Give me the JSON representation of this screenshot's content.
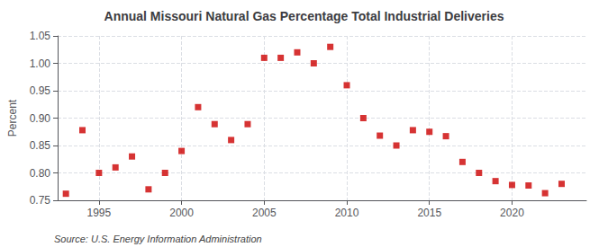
{
  "chart_data": {
    "type": "scatter",
    "title": "Annual Missouri Natural Gas Percentage Total Industrial Deliveries",
    "ylabel": "Percent",
    "annotations": [
      "Source: U.S. Energy Information Administration"
    ],
    "x": [
      1993,
      1994,
      1995,
      1996,
      1997,
      1998,
      1999,
      2000,
      2001,
      2002,
      2003,
      2004,
      2005,
      2006,
      2007,
      2008,
      2009,
      2010,
      2011,
      2012,
      2013,
      2014,
      2015,
      2016,
      2017,
      2018,
      2019,
      2020,
      2021,
      2022,
      2023
    ],
    "values": [
      0.762,
      0.878,
      0.8,
      0.81,
      0.83,
      0.77,
      0.8,
      0.84,
      0.92,
      0.889,
      0.86,
      0.889,
      1.01,
      1.01,
      1.02,
      1.0,
      1.03,
      0.96,
      0.9,
      0.868,
      0.85,
      0.878,
      0.875,
      0.867,
      0.82,
      0.8,
      0.785,
      0.778,
      0.777,
      0.763,
      0.78
    ],
    "color": "#cc0000",
    "marker": "square",
    "xlim": [
      1992.5,
      2024.5
    ],
    "xticks": [
      1995,
      2000,
      2005,
      2010,
      2015,
      2020
    ],
    "ylim": [
      0.75,
      1.05
    ],
    "yticks": [
      0.75,
      {
        "value": 0.8,
        "label": "0.80"
      },
      0.85,
      {
        "value": 0.9,
        "label": "0.90"
      },
      0.95,
      {
        "value": 1.0,
        "label": "1.00"
      },
      1.05
    ],
    "grid": true
  }
}
